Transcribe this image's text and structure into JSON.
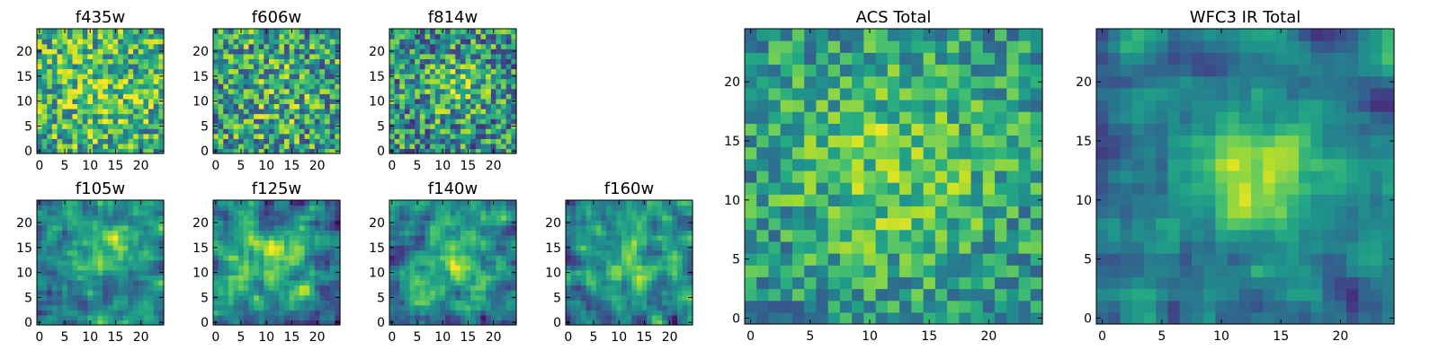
{
  "chart_data": [
    {
      "type": "heatmap",
      "title": "f435w",
      "colormap": "viridis",
      "grid_size": 25,
      "xlim": [
        0,
        24
      ],
      "ylim": [
        0,
        24
      ],
      "xticks": [
        0,
        5,
        10,
        15,
        20
      ],
      "yticks": [
        0,
        5,
        10,
        15,
        20
      ],
      "seed": 11,
      "blob": {
        "cx": 12,
        "cy": 12,
        "sigma": 6,
        "amp": 0.15
      },
      "noise": 0.7,
      "base": 0.62
    },
    {
      "type": "heatmap",
      "title": "f606w",
      "colormap": "viridis",
      "grid_size": 25,
      "xlim": [
        0,
        24
      ],
      "ylim": [
        0,
        24
      ],
      "xticks": [
        0,
        5,
        10,
        15,
        20
      ],
      "yticks": [
        0,
        5,
        10,
        15,
        20
      ],
      "seed": 23,
      "blob": {
        "cx": 12,
        "cy": 12,
        "sigma": 6,
        "amp": 0.1
      },
      "noise": 0.75,
      "base": 0.55
    },
    {
      "type": "heatmap",
      "title": "f814w",
      "colormap": "viridis",
      "grid_size": 25,
      "xlim": [
        0,
        24
      ],
      "ylim": [
        0,
        24
      ],
      "xticks": [
        0,
        5,
        10,
        15,
        20
      ],
      "yticks": [
        0,
        5,
        10,
        15,
        20
      ],
      "seed": 37,
      "blob": {
        "cx": 13,
        "cy": 13,
        "sigma": 4,
        "amp": 0.25
      },
      "noise": 0.75,
      "base": 0.5
    },
    {
      "type": "heatmap",
      "title": "f105w",
      "colormap": "viridis",
      "grid_size": 25,
      "xlim": [
        0,
        24
      ],
      "ylim": [
        0,
        24
      ],
      "xticks": [
        0,
        5,
        10,
        15,
        20
      ],
      "yticks": [
        0,
        5,
        10,
        15,
        20
      ],
      "seed": 41,
      "blob": {
        "cx": 13,
        "cy": 15,
        "sigma": 4,
        "amp": 0.35
      },
      "noise": 0.55,
      "base": 0.45,
      "smooth": true
    },
    {
      "type": "heatmap",
      "title": "f125w",
      "colormap": "viridis",
      "grid_size": 25,
      "xlim": [
        0,
        24
      ],
      "ylim": [
        0,
        24
      ],
      "xticks": [
        0,
        5,
        10,
        15,
        20
      ],
      "yticks": [
        0,
        5,
        10,
        15,
        20
      ],
      "seed": 53,
      "blob": {
        "cx": 12,
        "cy": 13,
        "sigma": 5,
        "amp": 0.3
      },
      "noise": 0.6,
      "base": 0.45,
      "smooth": true
    },
    {
      "type": "heatmap",
      "title": "f140w",
      "colormap": "viridis",
      "grid_size": 25,
      "xlim": [
        0,
        24
      ],
      "ylim": [
        0,
        24
      ],
      "xticks": [
        0,
        5,
        10,
        15,
        20
      ],
      "yticks": [
        0,
        5,
        10,
        15,
        20
      ],
      "seed": 67,
      "blob": {
        "cx": 12,
        "cy": 13,
        "sigma": 5,
        "amp": 0.3
      },
      "noise": 0.6,
      "base": 0.45,
      "smooth": true
    },
    {
      "type": "heatmap",
      "title": "f160w",
      "colormap": "viridis",
      "grid_size": 25,
      "xlim": [
        0,
        24
      ],
      "ylim": [
        0,
        24
      ],
      "xticks": [
        0,
        5,
        10,
        15,
        20
      ],
      "yticks": [
        0,
        5,
        10,
        15,
        20
      ],
      "seed": 79,
      "blob": {
        "cx": 12,
        "cy": 12,
        "sigma": 5,
        "amp": 0.3
      },
      "noise": 0.6,
      "base": 0.45,
      "smooth": true
    },
    {
      "type": "heatmap",
      "title": "ACS Total",
      "colormap": "viridis",
      "grid_size": 25,
      "xlim": [
        0,
        24
      ],
      "ylim": [
        0,
        24
      ],
      "xticks": [
        0,
        5,
        10,
        15,
        20
      ],
      "yticks": [
        0,
        5,
        10,
        15,
        20
      ],
      "seed": 97,
      "blob": {
        "cx": 12,
        "cy": 13,
        "sigma": 7,
        "amp": 0.25
      },
      "noise": 0.5,
      "base": 0.5
    },
    {
      "type": "heatmap",
      "title": "WFC3 IR Total",
      "colormap": "viridis",
      "grid_size": 25,
      "xlim": [
        0,
        24
      ],
      "ylim": [
        0,
        24
      ],
      "xticks": [
        0,
        5,
        10,
        15,
        20
      ],
      "yticks": [
        0,
        5,
        10,
        15,
        20
      ],
      "seed": 113,
      "blob": {
        "cx": 13,
        "cy": 12,
        "sigma": 4,
        "amp": 0.45
      },
      "noise": 0.45,
      "base": 0.4,
      "smooth": true
    }
  ]
}
